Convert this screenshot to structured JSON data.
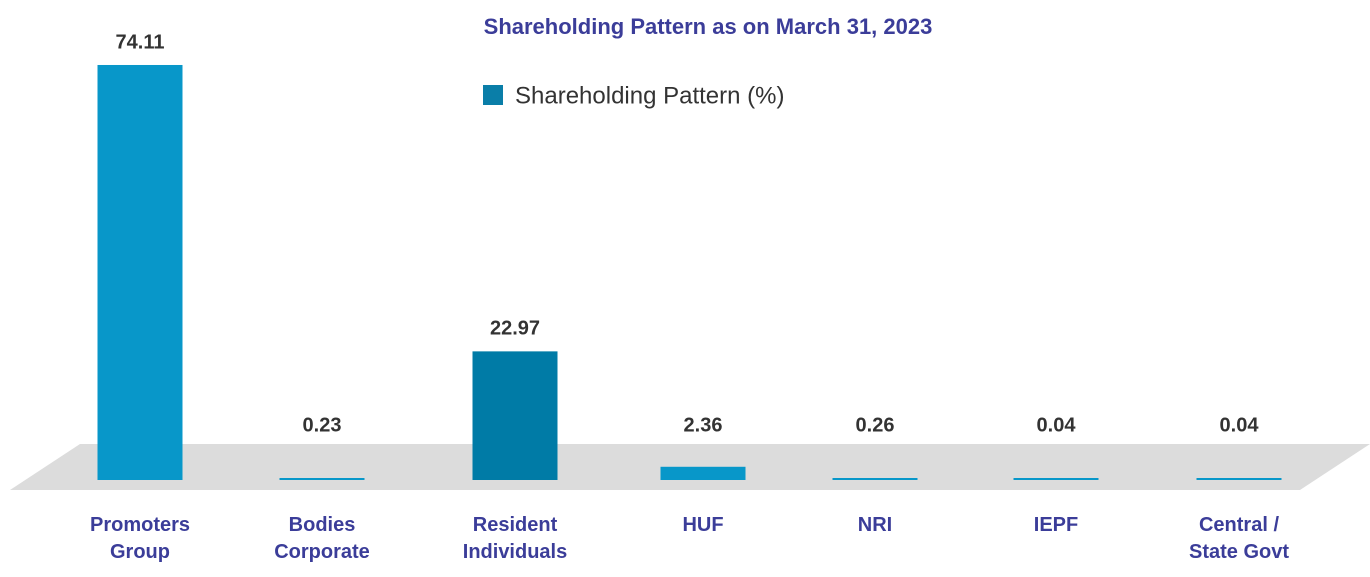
{
  "chart_data": {
    "type": "bar",
    "title": "Shareholding Pattern as on March 31, 2023",
    "categories": [
      "Promoters Group",
      "Bodies Corporate",
      "Resident Individuals",
      "HUF",
      "NRI",
      "IEPF",
      "Central / State Govt"
    ],
    "series": [
      {
        "name": "Shareholding Pattern (%)",
        "color": "#0a7ea8",
        "values": [
          74.11,
          0.23,
          22.97,
          2.36,
          0.26,
          0.04,
          0.04
        ],
        "colors": [
          "#0897c9",
          "#0897c9",
          "#007ba6",
          "#0897c9",
          "#0897c9",
          "#0897c9",
          "#0897c9"
        ]
      }
    ]
  }
}
